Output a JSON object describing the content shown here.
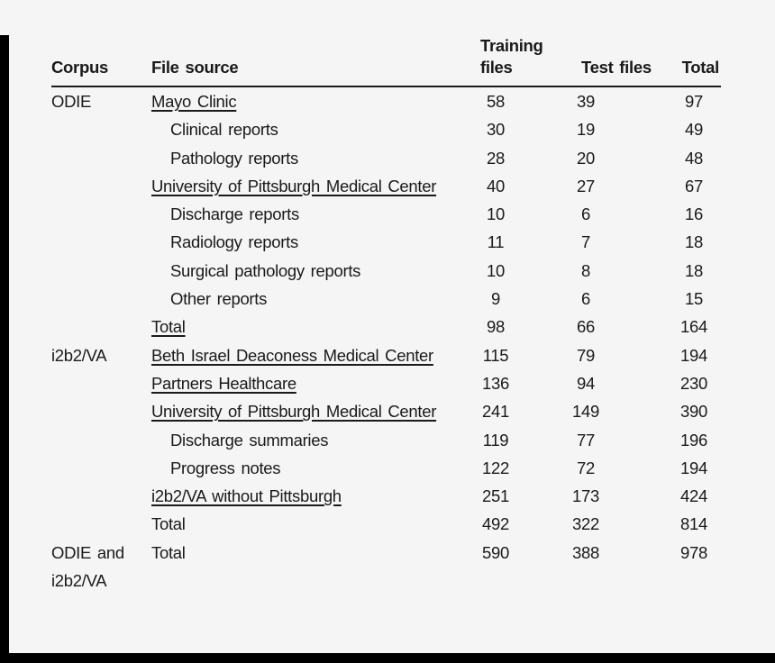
{
  "page": {
    "background_color": "#f5f5f6",
    "text_color": "#1a1a1a",
    "rule_color": "#1a1a1a",
    "frame_bar_color": "#000000"
  },
  "table": {
    "header": {
      "corpus": "Corpus",
      "file_source": "File source",
      "training_files": "Training files",
      "test_files": "Test files",
      "total": "Total"
    },
    "rows": [
      {
        "corpus": "ODIE",
        "source": "Mayo Clinic",
        "underline": true,
        "indent": false,
        "training": "58",
        "test": "39",
        "total": "97"
      },
      {
        "corpus": "",
        "source": "Clinical reports",
        "underline": false,
        "indent": true,
        "training": "30",
        "test": "19",
        "total": "49"
      },
      {
        "corpus": "",
        "source": "Pathology reports",
        "underline": false,
        "indent": true,
        "training": "28",
        "test": "20",
        "total": "48"
      },
      {
        "corpus": "",
        "source": "University of Pittsburgh Medical Center",
        "underline": true,
        "indent": false,
        "training": "40",
        "test": "27",
        "total": "67"
      },
      {
        "corpus": "",
        "source": "Discharge reports",
        "underline": false,
        "indent": true,
        "training": "10",
        "test": "6",
        "total": "16"
      },
      {
        "corpus": "",
        "source": "Radiology reports",
        "underline": false,
        "indent": true,
        "training": "11",
        "test": "7",
        "total": "18"
      },
      {
        "corpus": "",
        "source": "Surgical pathology reports",
        "underline": false,
        "indent": true,
        "training": "10",
        "test": "8",
        "total": "18"
      },
      {
        "corpus": "",
        "source": "Other reports",
        "underline": false,
        "indent": true,
        "training": "9",
        "test": "6",
        "total": "15"
      },
      {
        "corpus": "",
        "source": "Total",
        "underline": true,
        "indent": false,
        "training": "98",
        "test": "66",
        "total": "164"
      },
      {
        "corpus": "i2b2/VA",
        "source": "Beth Israel Deaconess Medical Center",
        "underline": true,
        "indent": false,
        "training": "115",
        "test": "79",
        "total": "194"
      },
      {
        "corpus": "",
        "source": "Partners Healthcare",
        "underline": true,
        "indent": false,
        "training": "136",
        "test": "94",
        "total": "230"
      },
      {
        "corpus": "",
        "source": "University of Pittsburgh Medical Center",
        "underline": true,
        "indent": false,
        "training": "241",
        "test": "149",
        "total": "390"
      },
      {
        "corpus": "",
        "source": "Discharge summaries",
        "underline": false,
        "indent": true,
        "training": "119",
        "test": "77",
        "total": "196"
      },
      {
        "corpus": "",
        "source": "Progress notes",
        "underline": false,
        "indent": true,
        "training": "122",
        "test": "72",
        "total": "194"
      },
      {
        "corpus": "",
        "source": "i2b2/VA without Pittsburgh",
        "underline": true,
        "indent": false,
        "training": "251",
        "test": "173",
        "total": "424"
      },
      {
        "corpus": "",
        "source": "Total",
        "underline": false,
        "indent": false,
        "training": "492",
        "test": "322",
        "total": "814"
      },
      {
        "corpus": "ODIE and i2b2/VA",
        "source": "Total",
        "underline": false,
        "indent": false,
        "training": "590",
        "test": "388",
        "total": "978"
      }
    ]
  }
}
